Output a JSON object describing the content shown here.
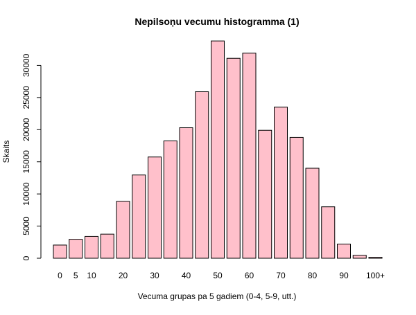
{
  "chart_data": {
    "type": "bar",
    "title": "Nepilsoņu vecumu histogramma (1)",
    "xlabel": "Vecuma grupas pa 5 gadiem (0-4, 5-9, utt.)",
    "ylabel": "Skaits",
    "ylim": [
      0,
      34000
    ],
    "y_ticks": [
      0,
      5000,
      10000,
      15000,
      20000,
      25000,
      30000
    ],
    "categories": [
      "0",
      "5",
      "10",
      "15",
      "20",
      "25",
      "30",
      "35",
      "40",
      "45",
      "50",
      "55",
      "60",
      "65",
      "70",
      "75",
      "80",
      "85",
      "90",
      "95",
      "100+"
    ],
    "category_labels_shown": [
      "0",
      "5",
      "10",
      "",
      "20",
      "",
      "30",
      "",
      "40",
      "",
      "50",
      "",
      "60",
      "",
      "70",
      "",
      "80",
      "",
      "90",
      "",
      "100+"
    ],
    "values": [
      2050,
      2950,
      3400,
      3750,
      8850,
      12950,
      15750,
      18250,
      20300,
      25900,
      33800,
      31100,
      31900,
      19900,
      23500,
      18800,
      14000,
      8000,
      2200,
      450,
      150
    ],
    "colors": {
      "bar_fill": "#FFC0CB",
      "bar_stroke": "#000000"
    },
    "grid": false,
    "legend": "none"
  }
}
